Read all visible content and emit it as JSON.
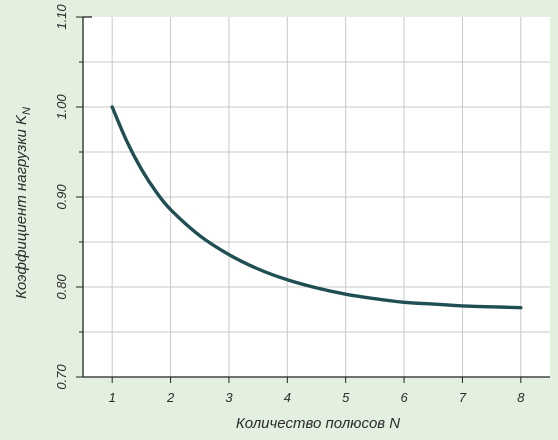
{
  "chart_data": {
    "type": "line",
    "title": "",
    "xlabel": "Количество полюсов N",
    "ylabel_main": "Коэффициент нагрузки K",
    "ylabel_subscript": "N",
    "xlim": [
      0.5,
      8.5
    ],
    "ylim": [
      0.7,
      1.1
    ],
    "xticks": [
      "1",
      "2",
      "3",
      "4",
      "5",
      "6",
      "7",
      "8"
    ],
    "yticks": [
      "0.70",
      "0.80",
      "0.90",
      "1.00",
      "1.10"
    ],
    "grid": true,
    "series": [
      {
        "color": "#1f4f52",
        "x": [
          1,
          1.25,
          1.5,
          1.75,
          2,
          2.5,
          3,
          3.5,
          4,
          4.5,
          5,
          5.5,
          6,
          6.5,
          7,
          7.5,
          8
        ],
        "y": [
          1.0,
          0.962,
          0.931,
          0.906,
          0.886,
          0.857,
          0.836,
          0.82,
          0.808,
          0.799,
          0.792,
          0.787,
          0.783,
          0.781,
          0.779,
          0.778,
          0.777
        ]
      }
    ]
  },
  "colors": {
    "background": "#e3f0df",
    "plot_bg": "#ffffff",
    "grid": "#c8c8c8",
    "axis": "#222222"
  }
}
